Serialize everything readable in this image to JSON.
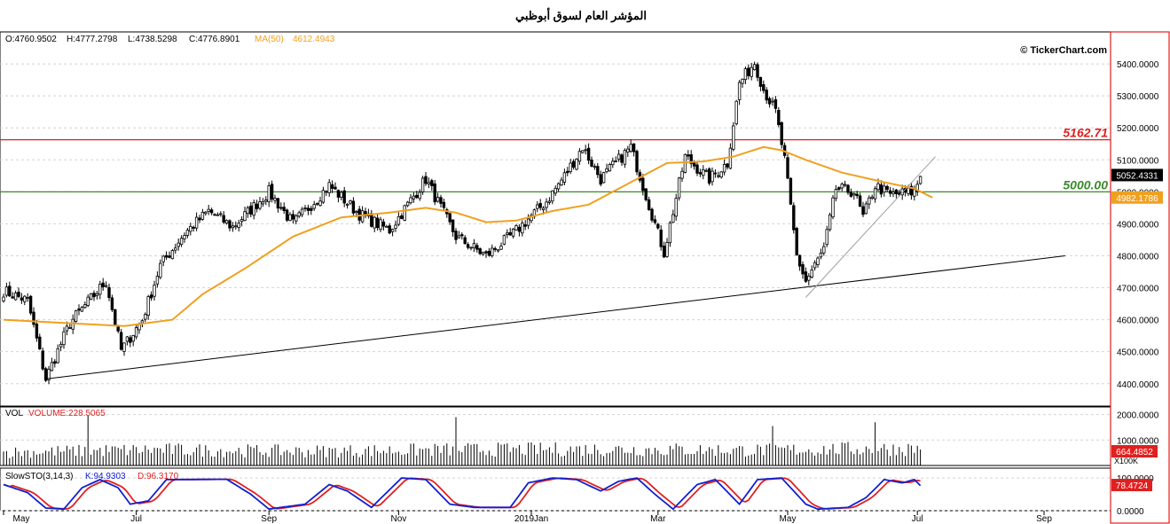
{
  "title": "المؤشر العام لسوق أبوظبي",
  "watermark": "© TickerChart.com",
  "ohlc_readout": {
    "open": "O:4760.9502",
    "high": "H:4777.2798",
    "low": "L:4738.5298",
    "close": "C:4776.8901",
    "ma_label": "MA(50)",
    "ma_value": "4612.4943"
  },
  "colors": {
    "up": "#ffffff",
    "down": "#000000",
    "ma": "#f0a020",
    "resistance": "#e02020",
    "support": "#3a8a2a",
    "trend": "#000000",
    "trend_short": "#a0a0a0",
    "stoch_k": "#1020d0",
    "stoch_d": "#e02020",
    "frame": "#e02020"
  },
  "chart_data": [
    {
      "type": "candlestick",
      "panel": "price",
      "ylim": [
        4330,
        5500
      ],
      "y_ticks": [
        4400,
        4500,
        4600,
        4700,
        4800,
        4900,
        5000,
        5100,
        5200,
        5300,
        5400
      ],
      "y_tick_labels": [
        "4400.0000",
        "4500.0000",
        "4600.0000",
        "4700.0000",
        "4800.0000",
        "4900.0000",
        "5000.0000",
        "5100.0000",
        "5200.0000",
        "5300.0000",
        "5400.0000"
      ],
      "x_ticks": [
        "May",
        "Jul",
        "Sep",
        "Nov",
        "2019Jan",
        "Mar",
        "May",
        "Jul",
        "Sep"
      ],
      "x_tick_index": [
        0,
        44,
        88,
        131,
        175,
        217,
        260,
        303,
        345
      ],
      "grid": true,
      "last_price": 5052.4331,
      "last_price_label": "5052.4331",
      "ma_last": 4982.1786,
      "ma_last_label": "4982.1786",
      "horizontal_lines": [
        {
          "value": 5162.71,
          "label": "5162.71",
          "color": "#e02020"
        },
        {
          "value": 5000.0,
          "label": "5000.00",
          "color": "#3a8a2a"
        }
      ],
      "trend_lines": [
        {
          "from": [
            14,
            4415
          ],
          "to": [
            352,
            4800
          ]
        },
        {
          "from": [
            266,
            4670
          ],
          "to": [
            309,
            5110
          ]
        }
      ],
      "anchors": [
        [
          0,
          4690
        ],
        [
          8,
          4660
        ],
        [
          14,
          4415
        ],
        [
          22,
          4590
        ],
        [
          34,
          4720
        ],
        [
          39,
          4505
        ],
        [
          46,
          4600
        ],
        [
          52,
          4770
        ],
        [
          60,
          4870
        ],
        [
          68,
          4940
        ],
        [
          76,
          4890
        ],
        [
          88,
          5000
        ],
        [
          96,
          4900
        ],
        [
          108,
          5020
        ],
        [
          118,
          4930
        ],
        [
          128,
          4880
        ],
        [
          140,
          5040
        ],
        [
          150,
          4860
        ],
        [
          160,
          4800
        ],
        [
          168,
          4860
        ],
        [
          180,
          4970
        ],
        [
          186,
          5050
        ],
        [
          192,
          5140
        ],
        [
          198,
          5040
        ],
        [
          208,
          5140
        ],
        [
          214,
          4960
        ],
        [
          219,
          4810
        ],
        [
          226,
          5110
        ],
        [
          234,
          5040
        ],
        [
          240,
          5090
        ],
        [
          244,
          5340
        ],
        [
          249,
          5405
        ],
        [
          252,
          5320
        ],
        [
          256,
          5250
        ],
        [
          259,
          5100
        ],
        [
          263,
          4800
        ],
        [
          266,
          4720
        ],
        [
          272,
          4820
        ],
        [
          276,
          5010
        ],
        [
          282,
          5000
        ],
        [
          285,
          4920
        ],
        [
          289,
          5020
        ],
        [
          294,
          4990
        ],
        [
          302,
          5000
        ],
        [
          304,
          5052
        ]
      ],
      "ma_points": [
        [
          0,
          4600
        ],
        [
          20,
          4590
        ],
        [
          40,
          4580
        ],
        [
          56,
          4600
        ],
        [
          66,
          4680
        ],
        [
          80,
          4760
        ],
        [
          96,
          4860
        ],
        [
          112,
          4920
        ],
        [
          128,
          4935
        ],
        [
          140,
          4950
        ],
        [
          150,
          4935
        ],
        [
          160,
          4905
        ],
        [
          170,
          4910
        ],
        [
          182,
          4940
        ],
        [
          194,
          4960
        ],
        [
          208,
          5030
        ],
        [
          220,
          5090
        ],
        [
          232,
          5095
        ],
        [
          242,
          5110
        ],
        [
          252,
          5140
        ],
        [
          258,
          5130
        ],
        [
          266,
          5100
        ],
        [
          278,
          5060
        ],
        [
          292,
          5030
        ],
        [
          302,
          5010
        ],
        [
          308,
          4982
        ]
      ]
    },
    {
      "type": "bar",
      "panel": "volume",
      "label": "VOL",
      "series_name": "VOLUME:228.5065",
      "ylim": [
        0,
        2300
      ],
      "y_ticks": [
        1000,
        2000
      ],
      "y_tick_labels": [
        "1000.0000",
        "2000.0000"
      ],
      "last_value_label": "664.4852",
      "unit_label": "X100K",
      "anchors": [
        [
          0,
          520
        ],
        [
          50,
          620
        ],
        [
          100,
          560
        ],
        [
          150,
          620
        ],
        [
          200,
          640
        ],
        [
          250,
          600
        ],
        [
          290,
          660
        ],
        [
          305,
          660
        ]
      ],
      "spikes": [
        [
          28,
          1950
        ],
        [
          150,
          1900
        ],
        [
          255,
          1550
        ],
        [
          289,
          1700
        ]
      ]
    },
    {
      "type": "line",
      "panel": "stochastic",
      "label": "SlowSTO(3,14,3)",
      "series": [
        {
          "name": "K:94.9303",
          "key": "k"
        },
        {
          "name": "D:96.3170",
          "key": "d"
        }
      ],
      "ylim": [
        0,
        130
      ],
      "y_ticks": [
        0,
        100
      ],
      "y_tick_labels": [
        "0.0000",
        "100.0000"
      ],
      "last_value_label": "78.4724",
      "k_anchors": [
        [
          0,
          80
        ],
        [
          8,
          55
        ],
        [
          14,
          8
        ],
        [
          20,
          5
        ],
        [
          26,
          70
        ],
        [
          32,
          95
        ],
        [
          38,
          70
        ],
        [
          42,
          20
        ],
        [
          48,
          30
        ],
        [
          54,
          95
        ],
        [
          74,
          96
        ],
        [
          82,
          50
        ],
        [
          88,
          5
        ],
        [
          100,
          20
        ],
        [
          108,
          80
        ],
        [
          114,
          60
        ],
        [
          122,
          10
        ],
        [
          132,
          100
        ],
        [
          140,
          95
        ],
        [
          148,
          20
        ],
        [
          156,
          10
        ],
        [
          168,
          10
        ],
        [
          174,
          85
        ],
        [
          182,
          100
        ],
        [
          190,
          95
        ],
        [
          198,
          60
        ],
        [
          204,
          90
        ],
        [
          210,
          100
        ],
        [
          216,
          50
        ],
        [
          222,
          5
        ],
        [
          230,
          80
        ],
        [
          236,
          95
        ],
        [
          244,
          20
        ],
        [
          250,
          95
        ],
        [
          258,
          100
        ],
        [
          266,
          20
        ],
        [
          270,
          5
        ],
        [
          280,
          10
        ],
        [
          286,
          40
        ],
        [
          292,
          95
        ],
        [
          298,
          85
        ],
        [
          302,
          95
        ],
        [
          308,
          40
        ],
        [
          314,
          60
        ],
        [
          320,
          85
        ]
      ]
    }
  ]
}
